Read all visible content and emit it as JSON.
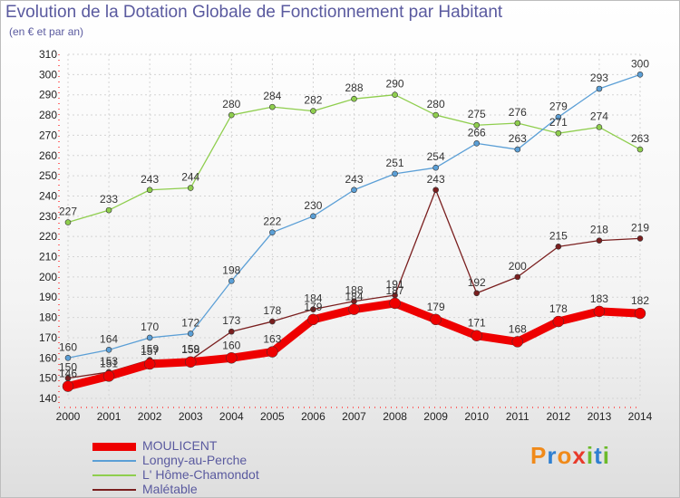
{
  "title": "Evolution de la Dotation Globale de Fonctionnement par Habitant",
  "subtitle": "(en € et par an)",
  "brand": {
    "letters": [
      "P",
      "r",
      "o",
      "x",
      "i",
      "t",
      "i"
    ],
    "colors": [
      "#f08a1a",
      "#2e7fd1",
      "#f08a1a",
      "#e83a2a",
      "#6cba2a",
      "#2e7fd1",
      "#6cba2a"
    ]
  },
  "chart_data": {
    "type": "line",
    "title": "Evolution de la Dotation Globale de Fonctionnement par Habitant",
    "ylabel": "(en € et par an)",
    "x": [
      "2000",
      "2001",
      "2002",
      "2003",
      "2004",
      "2005",
      "2006",
      "2007",
      "2008",
      "2009",
      "2010",
      "2011",
      "2012",
      "2013",
      "2014"
    ],
    "ylim": [
      140,
      310
    ],
    "yticks": [
      140,
      150,
      160,
      170,
      180,
      190,
      200,
      210,
      220,
      230,
      240,
      250,
      260,
      270,
      280,
      290,
      300,
      310
    ],
    "grid": true,
    "legend": "bottom-left",
    "series": [
      {
        "name": "L' Hôme-Chamondot",
        "color": "#8fce4e",
        "values": [
          227,
          233,
          243,
          244,
          280,
          284,
          282,
          288,
          290,
          280,
          275,
          276,
          271,
          274,
          263
        ]
      },
      {
        "name": "Longny-au-Perche",
        "color": "#5b9fd6",
        "values": [
          160,
          164,
          170,
          172,
          198,
          222,
          230,
          243,
          251,
          254,
          266,
          263,
          279,
          293,
          300
        ]
      },
      {
        "name": "Malétable",
        "color": "#7a1f1f",
        "values": [
          150,
          153,
          159,
          159,
          173,
          178,
          184,
          188,
          191,
          243,
          192,
          200,
          215,
          218,
          219
        ]
      },
      {
        "name": "MOULICENT",
        "color": "#ee0000",
        "values": [
          146,
          151,
          157,
          158,
          160,
          163,
          179,
          184,
          187,
          179,
          171,
          168,
          178,
          183,
          182
        ]
      }
    ]
  }
}
